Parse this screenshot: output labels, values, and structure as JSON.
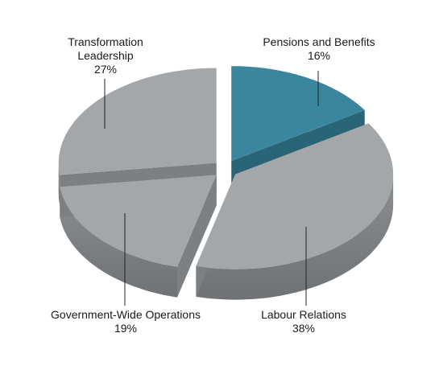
{
  "chart_data": {
    "type": "pie",
    "title": "",
    "slices": [
      {
        "label": "Pensions and Benefits",
        "value": 16,
        "display": "16%",
        "color": "#3a869e"
      },
      {
        "label": "Labour Relations",
        "value": 38,
        "display": "38%",
        "color": "#a4a7aa"
      },
      {
        "label": "Government-Wide Operations",
        "value": 19,
        "display": "19%",
        "color": "#a4a7aa"
      },
      {
        "label": "Transformation Leadership",
        "value": 27,
        "display": "27%",
        "color": "#a4a7aa"
      }
    ],
    "style": "3d-exploded",
    "legend": "none"
  }
}
